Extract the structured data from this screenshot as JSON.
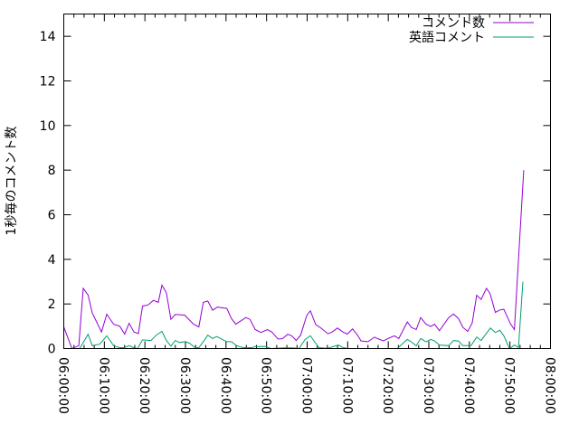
{
  "chart_data": {
    "type": "line",
    "title": "",
    "xlabel": "",
    "ylabel": "1秒毎のコメント数",
    "xlim": [
      "06:00:00",
      "08:00:00"
    ],
    "ylim": [
      0,
      15
    ],
    "x_ticks": [
      "06:00:00",
      "06:10:00",
      "06:20:00",
      "06:30:00",
      "06:40:00",
      "06:50:00",
      "07:00:00",
      "07:10:00",
      "07:20:00",
      "07:30:00",
      "07:40:00",
      "07:50:00",
      "08:00:00"
    ],
    "y_ticks": [
      "0",
      "2",
      "4",
      "6",
      "8",
      "10",
      "12",
      "14"
    ],
    "grid": false,
    "legend_position": "top-right",
    "series": [
      {
        "name": "コメント数",
        "color": "#9400d3",
        "points": [
          [
            "06:00:00",
            0.97
          ],
          [
            "06:02:00",
            0
          ],
          [
            "06:03:42",
            0.13
          ],
          [
            "06:04:48",
            2.7
          ],
          [
            "06:06:00",
            2.4
          ],
          [
            "06:07:00",
            1.6
          ],
          [
            "06:09:18",
            0.74
          ],
          [
            "06:10:36",
            1.54
          ],
          [
            "06:12:18",
            1.09
          ],
          [
            "06:13:48",
            1.0
          ],
          [
            "06:15:00",
            0.65
          ],
          [
            "06:16:06",
            1.13
          ],
          [
            "06:17:18",
            0.74
          ],
          [
            "06:18:24",
            0.67
          ],
          [
            "06:19:24",
            1.9
          ],
          [
            "06:20:48",
            1.96
          ],
          [
            "06:22:06",
            2.16
          ],
          [
            "06:23:18",
            2.07
          ],
          [
            "06:24:12",
            2.84
          ],
          [
            "06:25:18",
            2.5
          ],
          [
            "06:26:24",
            1.31
          ],
          [
            "06:27:30",
            1.53
          ],
          [
            "06:29:48",
            1.5
          ],
          [
            "06:32:00",
            1.09
          ],
          [
            "06:33:18",
            0.97
          ],
          [
            "06:34:24",
            2.07
          ],
          [
            "06:35:30",
            2.13
          ],
          [
            "06:36:42",
            1.72
          ],
          [
            "06:37:54",
            1.86
          ],
          [
            "06:40:12",
            1.8
          ],
          [
            "06:41:18",
            1.35
          ],
          [
            "06:42:24",
            1.09
          ],
          [
            "06:44:54",
            1.39
          ],
          [
            "06:45:54",
            1.31
          ],
          [
            "06:47:12",
            0.85
          ],
          [
            "06:48:36",
            0.72
          ],
          [
            "06:50:12",
            0.85
          ],
          [
            "06:51:18",
            0.74
          ],
          [
            "06:52:48",
            0.43
          ],
          [
            "06:53:54",
            0.44
          ],
          [
            "06:55:12",
            0.64
          ],
          [
            "06:56:12",
            0.57
          ],
          [
            "06:57:18",
            0.36
          ],
          [
            "06:58:24",
            0.6
          ],
          [
            "06:59:54",
            1.49
          ],
          [
            "07:00:48",
            1.69
          ],
          [
            "07:02:06",
            1.08
          ],
          [
            "07:03:12",
            0.95
          ],
          [
            "07:05:06",
            0.67
          ],
          [
            "07:06:00",
            0.72
          ],
          [
            "07:07:30",
            0.92
          ],
          [
            "07:08:48",
            0.74
          ],
          [
            "07:09:54",
            0.65
          ],
          [
            "07:11:12",
            0.88
          ],
          [
            "07:12:24",
            0.61
          ],
          [
            "07:13:18",
            0.34
          ],
          [
            "07:15:00",
            0.31
          ],
          [
            "07:16:36",
            0.51
          ],
          [
            "07:17:36",
            0.43
          ],
          [
            "07:18:48",
            0.34
          ],
          [
            "07:19:54",
            0.45
          ],
          [
            "07:21:30",
            0.57
          ],
          [
            "07:22:36",
            0.45
          ],
          [
            "07:24:42",
            1.19
          ],
          [
            "07:25:42",
            0.95
          ],
          [
            "07:26:54",
            0.85
          ],
          [
            "07:28:00",
            1.39
          ],
          [
            "07:29:18",
            1.09
          ],
          [
            "07:30:30",
            0.99
          ],
          [
            "07:31:24",
            1.09
          ],
          [
            "07:32:36",
            0.8
          ],
          [
            "07:34:54",
            1.39
          ],
          [
            "07:36:06",
            1.55
          ],
          [
            "07:37:18",
            1.35
          ],
          [
            "07:38:24",
            0.95
          ],
          [
            "07:39:36",
            0.77
          ],
          [
            "07:40:42",
            1.15
          ],
          [
            "07:41:48",
            2.39
          ],
          [
            "07:42:54",
            2.2
          ],
          [
            "07:44:12",
            2.7
          ],
          [
            "07:45:06",
            2.47
          ],
          [
            "07:46:24",
            1.62
          ],
          [
            "07:47:30",
            1.73
          ],
          [
            "07:48:30",
            1.76
          ],
          [
            "07:50:06",
            1.12
          ],
          [
            "07:51:06",
            0.85
          ],
          [
            "07:53:24",
            8.0
          ]
        ]
      },
      {
        "name": "英語コメント",
        "color": "#009e73",
        "points": [
          [
            "06:00:00",
            0
          ],
          [
            "06:03:54",
            0
          ],
          [
            "06:06:00",
            0.64
          ],
          [
            "06:07:00",
            0.13
          ],
          [
            "06:08:54",
            0.2
          ],
          [
            "06:10:36",
            0.57
          ],
          [
            "06:12:18",
            0.13
          ],
          [
            "06:13:48",
            0.04
          ],
          [
            "06:14:54",
            0.04
          ],
          [
            "06:16:06",
            0.13
          ],
          [
            "06:17:12",
            0.04
          ],
          [
            "06:18:12",
            0
          ],
          [
            "06:19:24",
            0.39
          ],
          [
            "06:21:30",
            0.36
          ],
          [
            "06:22:48",
            0.6
          ],
          [
            "06:24:12",
            0.77
          ],
          [
            "06:25:18",
            0.36
          ],
          [
            "06:26:24",
            0.11
          ],
          [
            "06:27:30",
            0.36
          ],
          [
            "06:28:30",
            0.27
          ],
          [
            "06:30:00",
            0.31
          ],
          [
            "06:31:00",
            0.24
          ],
          [
            "06:32:18",
            0.05
          ],
          [
            "06:33:18",
            0.04
          ],
          [
            "06:34:24",
            0.31
          ],
          [
            "06:35:30",
            0.6
          ],
          [
            "06:36:42",
            0.45
          ],
          [
            "06:37:42",
            0.54
          ],
          [
            "06:39:06",
            0.41
          ],
          [
            "06:40:12",
            0.31
          ],
          [
            "06:41:18",
            0.31
          ],
          [
            "06:42:36",
            0.13
          ],
          [
            "06:44:12",
            0.04
          ],
          [
            "06:46:24",
            0.04
          ],
          [
            "06:47:12",
            0.09
          ],
          [
            "06:49:48",
            0.09
          ],
          [
            "06:51:00",
            0
          ],
          [
            "06:54:18",
            0.03
          ],
          [
            "06:56:30",
            0.03
          ],
          [
            "06:58:00",
            0
          ],
          [
            "06:59:30",
            0.41
          ],
          [
            "07:00:48",
            0.57
          ],
          [
            "07:01:42",
            0.34
          ],
          [
            "07:02:54",
            0.04
          ],
          [
            "07:05:00",
            0.01
          ],
          [
            "07:07:42",
            0.16
          ],
          [
            "07:08:48",
            0.05
          ],
          [
            "07:09:54",
            0
          ],
          [
            "07:22:12",
            0
          ],
          [
            "07:24:42",
            0.41
          ],
          [
            "07:25:42",
            0.3
          ],
          [
            "07:26:54",
            0.12
          ],
          [
            "07:28:00",
            0.45
          ],
          [
            "07:29:18",
            0.3
          ],
          [
            "07:30:30",
            0.41
          ],
          [
            "07:31:24",
            0.34
          ],
          [
            "07:32:36",
            0.16
          ],
          [
            "07:34:54",
            0.13
          ],
          [
            "07:36:06",
            0.36
          ],
          [
            "07:37:18",
            0.34
          ],
          [
            "07:38:24",
            0.13
          ],
          [
            "07:40:24",
            0.13
          ],
          [
            "07:41:48",
            0.51
          ],
          [
            "07:42:54",
            0.36
          ],
          [
            "07:45:12",
            0.92
          ],
          [
            "07:46:24",
            0.72
          ],
          [
            "07:47:30",
            0.82
          ],
          [
            "07:48:30",
            0.57
          ],
          [
            "07:49:54",
            0
          ],
          [
            "07:51:06",
            0.16
          ],
          [
            "07:52:06",
            0.05
          ],
          [
            "07:53:12",
            3.0
          ]
        ]
      }
    ]
  }
}
